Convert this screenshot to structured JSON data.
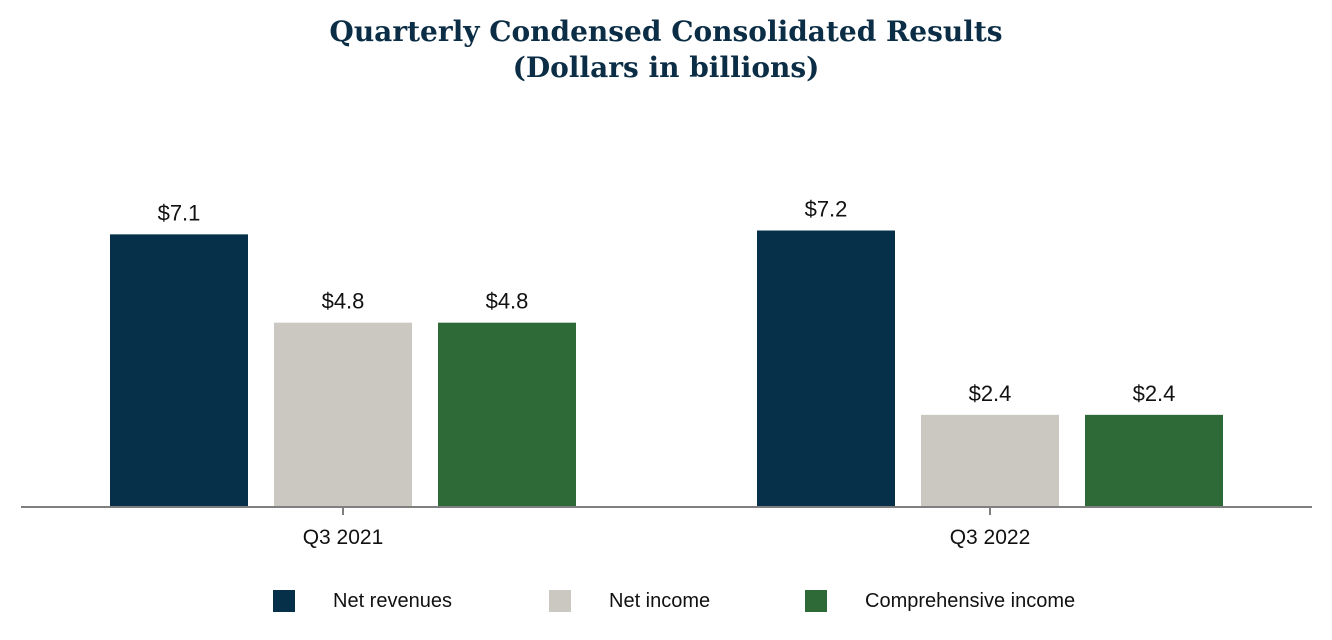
{
  "title": "Quarterly Condensed Consolidated Results",
  "subtitle": "(Dollars in billions)",
  "chart_data": {
    "type": "bar",
    "title": "Quarterly Condensed Consolidated Results",
    "subtitle": "(Dollars in billions)",
    "categories": [
      "Q3 2021",
      "Q3 2022"
    ],
    "series": [
      {
        "name": "Net revenues",
        "values": [
          7.1,
          7.2
        ],
        "labels": [
          "$7.1",
          "$7.2"
        ],
        "color": "#06304a"
      },
      {
        "name": "Net income",
        "values": [
          4.8,
          2.4
        ],
        "labels": [
          "$4.8",
          "$2.4"
        ],
        "color": "#cbc8c2"
      },
      {
        "name": "Comprehensive income",
        "values": [
          4.8,
          2.4
        ],
        "labels": [
          "$4.8",
          "$2.4"
        ],
        "color": "#2d6a37"
      }
    ],
    "ylim": [
      0,
      7.5
    ],
    "grid": false,
    "legend_position": "bottom",
    "xlabel": "",
    "ylabel": ""
  }
}
